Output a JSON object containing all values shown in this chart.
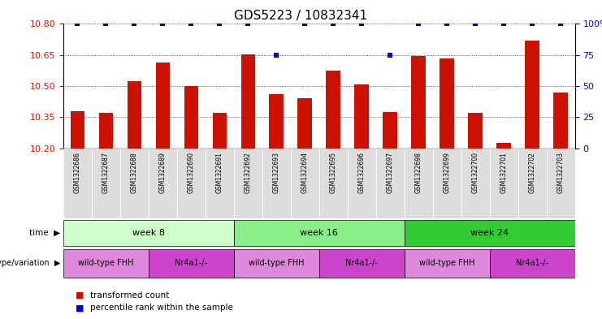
{
  "title": "GDS5223 / 10832341",
  "samples": [
    "GSM1322686",
    "GSM1322687",
    "GSM1322688",
    "GSM1322689",
    "GSM1322690",
    "GSM1322691",
    "GSM1322692",
    "GSM1322693",
    "GSM1322694",
    "GSM1322695",
    "GSM1322696",
    "GSM1322697",
    "GSM1322698",
    "GSM1322699",
    "GSM1322700",
    "GSM1322701",
    "GSM1322702",
    "GSM1322703"
  ],
  "transformed_counts": [
    10.38,
    10.37,
    10.525,
    10.615,
    10.5,
    10.37,
    10.655,
    10.46,
    10.44,
    10.575,
    10.51,
    10.375,
    10.645,
    10.635,
    10.37,
    10.225,
    10.72,
    10.47
  ],
  "percentile_ranks": [
    100,
    100,
    100,
    100,
    100,
    100,
    100,
    75,
    100,
    100,
    100,
    75,
    100,
    100,
    100,
    100,
    100,
    100
  ],
  "ylim_left": [
    10.2,
    10.8
  ],
  "ylim_right": [
    0,
    100
  ],
  "yticks_left": [
    10.2,
    10.35,
    10.5,
    10.65,
    10.8
  ],
  "yticks_right": [
    0,
    25,
    50,
    75,
    100
  ],
  "bar_color": "#cc1100",
  "dot_color": "#0000cc",
  "bar_width": 0.5,
  "time_groups": [
    {
      "label": "week 8",
      "start": 0,
      "end": 5,
      "color": "#ccffcc"
    },
    {
      "label": "week 16",
      "start": 6,
      "end": 11,
      "color": "#88ee88"
    },
    {
      "label": "week 24",
      "start": 12,
      "end": 17,
      "color": "#33cc33"
    }
  ],
  "genotype_groups": [
    {
      "label": "wild-type FHH",
      "start": 0,
      "end": 2,
      "color": "#dd88dd"
    },
    {
      "label": "Nr4a1-/-",
      "start": 3,
      "end": 5,
      "color": "#cc44cc"
    },
    {
      "label": "wild-type FHH",
      "start": 6,
      "end": 8,
      "color": "#dd88dd"
    },
    {
      "label": "Nr4a1-/-",
      "start": 9,
      "end": 11,
      "color": "#cc44cc"
    },
    {
      "label": "wild-type FHH",
      "start": 12,
      "end": 14,
      "color": "#dd88dd"
    },
    {
      "label": "Nr4a1-/-",
      "start": 15,
      "end": 17,
      "color": "#cc44cc"
    }
  ],
  "background_color": "#ffffff",
  "tick_label_color_left": "#cc1100",
  "tick_label_color_right": "#0000cc",
  "sample_bg_color": "#dddddd",
  "legend_bar_color": "#cc1100",
  "legend_dot_color": "#0000cc"
}
